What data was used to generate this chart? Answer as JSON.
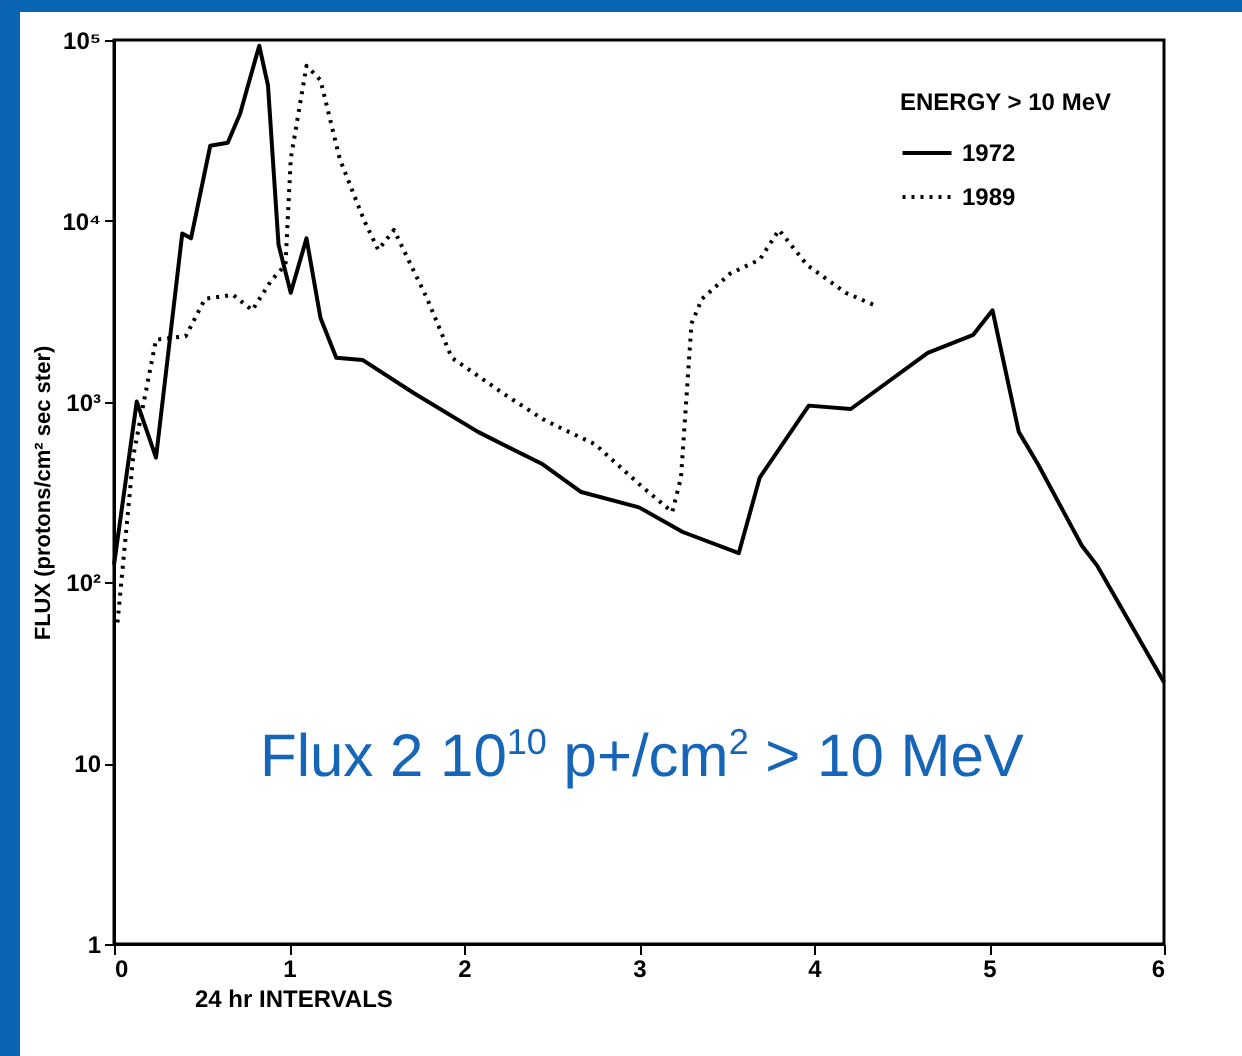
{
  "chart_data": {
    "type": "line",
    "xlabel": "24 hr INTERVALS",
    "ylabel": "FLUX (protons/cm² sec ster)",
    "legend_title": "ENERGY > 10 MeV",
    "legend": "top right",
    "log": "y",
    "grid": false,
    "marker": "none",
    "xlim": [
      0,
      6
    ],
    "xticks": [
      0,
      1,
      2,
      3,
      4,
      5,
      6
    ],
    "ylim": [
      1,
      100000
    ],
    "yticks": [
      1,
      10,
      {
        "value": 100,
        "label": "10²"
      },
      {
        "value": 1000,
        "label": "10³"
      },
      {
        "value": 10000,
        "label": "10⁴"
      },
      {
        "value": 100000,
        "label": "10⁵"
      }
    ],
    "annotations": [
      "Flux 2 10$^{10}$ p+/cm$^{2}$ > 10 MeV"
    ],
    "series": [
      {
        "name": "1972",
        "color": "#000000",
        "line_style": "solid",
        "x": [
          0,
          0.13,
          0.24,
          0.39,
          0.44,
          0.55,
          0.65,
          0.72,
          0.83,
          0.88,
          0.94,
          1.01,
          1.1,
          1.18,
          1.27,
          1.42,
          1.71,
          2.08,
          2.45,
          2.67,
          3.0,
          3.25,
          3.57,
          3.69,
          3.97,
          4.21,
          4.65,
          4.91,
          5.02,
          5.17,
          5.28,
          5.53,
          5.62,
          6.0
        ],
        "values": [
          125,
          1000,
          490,
          8500,
          8000,
          26000,
          27000,
          39000,
          93000,
          56000,
          7400,
          4000,
          8000,
          2900,
          1750,
          1700,
          1120,
          680,
          450,
          316,
          260,
          190,
          145,
          380,
          950,
          910,
          1860,
          2340,
          3200,
          680,
          450,
          160,
          123,
          28
        ]
      },
      {
        "name": "1989",
        "color": "#000000",
        "line_style": "dotted",
        "x": [
          0.02,
          0.11,
          0.24,
          0.41,
          0.52,
          0.68,
          0.79,
          0.9,
          0.98,
          1.01,
          1.1,
          1.18,
          1.29,
          1.43,
          1.51,
          1.6,
          1.79,
          1.93,
          2.23,
          2.45,
          2.52,
          2.75,
          3.0,
          3.19,
          3.24,
          3.3,
          3.36,
          3.52,
          3.69,
          3.8,
          3.96,
          4.18,
          4.35
        ],
        "values": [
          60,
          500,
          2200,
          2300,
          3700,
          3900,
          3200,
          4700,
          5700,
          22000,
          72000,
          60000,
          22000,
          10000,
          6900,
          8900,
          3700,
          1750,
          1100,
          800,
          740,
          580,
          350,
          245,
          380,
          2700,
          3700,
          5100,
          6100,
          8900,
          5700,
          4000,
          3400
        ]
      }
    ]
  }
}
